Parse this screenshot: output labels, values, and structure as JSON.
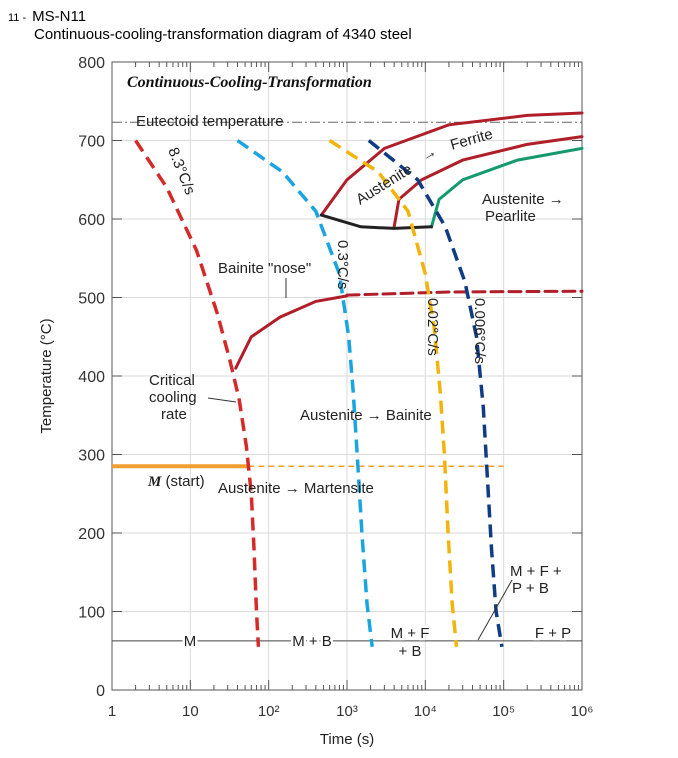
{
  "header": {
    "number": "11 -",
    "code": "MS-N11",
    "subtitle": "Continuous-cooling-transformation diagram of 4340 steel"
  },
  "chart_data": {
    "type": "line",
    "title": "Continuous-Cooling-Transformation",
    "xlabel": "Time (s)",
    "ylabel": "Temperature (°C)",
    "x_scale": "log",
    "xlim": [
      1,
      1000000
    ],
    "ylim": [
      0,
      800
    ],
    "x_ticks": [
      "1",
      "10",
      "10²",
      "10³",
      "10⁴",
      "10⁵",
      "10⁶"
    ],
    "y_ticks": [
      "0",
      "100",
      "200",
      "300",
      "400",
      "500",
      "600",
      "700",
      "800"
    ],
    "eutectoid": {
      "label": "Eutectoid temperature",
      "temperature": 727
    },
    "m_start": {
      "label_m": "M",
      "label_rest": "(start)",
      "temperature": 285
    },
    "cooling_curves": [
      {
        "name": "8.3°C/s",
        "color": "#d42a2a",
        "points": [
          [
            2,
            700
          ],
          [
            5,
            640
          ],
          [
            12,
            560
          ],
          [
            22,
            480
          ],
          [
            32,
            420
          ],
          [
            42,
            370
          ],
          [
            52,
            310
          ],
          [
            60,
            250
          ],
          [
            65,
            180
          ],
          [
            70,
            100
          ],
          [
            74,
            55
          ]
        ]
      },
      {
        "name": "0.3°C/s",
        "color": "#1aa5e0",
        "points": [
          [
            40,
            700
          ],
          [
            150,
            660
          ],
          [
            400,
            610
          ],
          [
            800,
            530
          ],
          [
            1050,
            450
          ],
          [
            1200,
            380
          ],
          [
            1350,
            300
          ],
          [
            1550,
            200
          ],
          [
            1800,
            110
          ],
          [
            2100,
            55
          ]
        ]
      },
      {
        "name": "0.02°C/s",
        "color": "#f2b40c",
        "points": [
          [
            600,
            700
          ],
          [
            2500,
            660
          ],
          [
            6000,
            610
          ],
          [
            10000,
            530
          ],
          [
            13000,
            460
          ],
          [
            15500,
            380
          ],
          [
            17500,
            300
          ],
          [
            19500,
            200
          ],
          [
            22000,
            110
          ],
          [
            25000,
            55
          ]
        ]
      },
      {
        "name": "0.006°C/s",
        "color": "#0f3c82",
        "points": [
          [
            1900,
            700
          ],
          [
            8000,
            650
          ],
          [
            18000,
            590
          ],
          [
            32000,
            520
          ],
          [
            45000,
            450
          ],
          [
            55000,
            360
          ],
          [
            62000,
            270
          ],
          [
            70000,
            180
          ],
          [
            80000,
            100
          ],
          [
            95000,
            55
          ]
        ]
      }
    ],
    "transformation_lines": [
      {
        "name": "ferrite-start",
        "color": "#b01e2a",
        "style": "solid",
        "points": [
          [
            470,
            605
          ],
          [
            1000,
            650
          ],
          [
            3000,
            690
          ],
          [
            20000,
            720
          ],
          [
            200000,
            732
          ],
          [
            1000000,
            735
          ]
        ]
      },
      {
        "name": "pearlite-start",
        "color": "#b01e2a",
        "style": "solid",
        "points": [
          [
            4000,
            590
          ],
          [
            4600,
            625
          ],
          [
            9000,
            650
          ],
          [
            30000,
            675
          ],
          [
            200000,
            695
          ],
          [
            1000000,
            705
          ]
        ]
      },
      {
        "name": "pearlite-finish",
        "color": "#149a6e",
        "style": "solid",
        "points": [
          [
            12000,
            590
          ],
          [
            15000,
            625
          ],
          [
            30000,
            650
          ],
          [
            150000,
            675
          ],
          [
            1000000,
            690
          ]
        ]
      },
      {
        "name": "bainite-finish",
        "color": "#222222",
        "style": "solid",
        "points": [
          [
            470,
            605
          ],
          [
            1500,
            590
          ],
          [
            4000,
            588
          ],
          [
            12000,
            590
          ]
        ]
      },
      {
        "name": "bainite-start",
        "color": "#b01e2a",
        "style": "solid",
        "points": [
          [
            38,
            410
          ],
          [
            60,
            450
          ],
          [
            140,
            475
          ],
          [
            400,
            495
          ],
          [
            1000,
            502
          ]
        ]
      },
      {
        "name": "bainite-start-extension",
        "color": "#b01e2a",
        "style": "dashed",
        "points": [
          [
            1000,
            503
          ],
          [
            20000,
            507
          ],
          [
            1000000,
            508
          ]
        ]
      }
    ],
    "annotations": {
      "ferrite": [
        "Austenite",
        "→",
        "Ferrite"
      ],
      "pearlite": [
        "Austenite →",
        "Pearlite"
      ],
      "nose": "Bainite \"nose\"",
      "critical": [
        "Critical",
        "cooling",
        "rate"
      ],
      "bainite": "Austenite → Bainite",
      "martensite": "Austenite → Martensite",
      "mfpb": [
        "M + F +",
        "P + B"
      ]
    },
    "microstructure_row": {
      "temperature": 60,
      "labels": [
        "M",
        "M + B",
        "M + F",
        "+ B",
        "F + P"
      ]
    }
  }
}
